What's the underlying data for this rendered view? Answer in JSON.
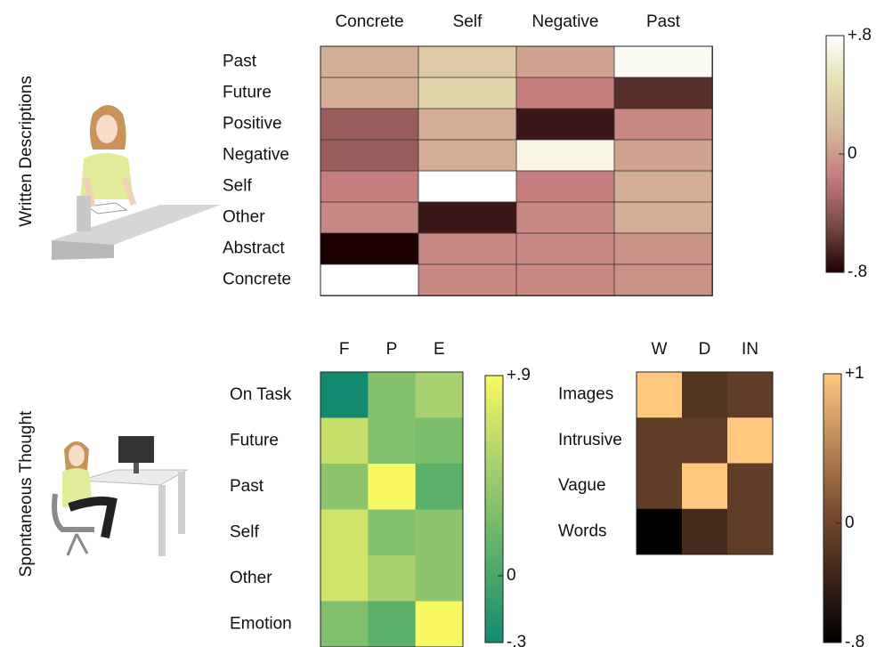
{
  "section_labels": [
    "Written Descriptions",
    "Spontaneous Thought"
  ],
  "chart_data": [
    {
      "type": "heatmap",
      "x_categories": [
        "Concrete",
        "Self",
        "Negative",
        "Past"
      ],
      "y_categories": [
        "Past",
        "Future",
        "Positive",
        "Negative",
        "Self",
        "Other",
        "Abstract",
        "Concrete"
      ],
      "values": [
        [
          0.1,
          0.3,
          0.05,
          0.75
        ],
        [
          0.1,
          0.4,
          -0.15,
          -0.6
        ],
        [
          -0.35,
          0.1,
          -0.7,
          -0.1
        ],
        [
          -0.35,
          0.1,
          0.7,
          0.05
        ],
        [
          -0.15,
          0.8,
          -0.15,
          0.1
        ],
        [
          -0.1,
          -0.7,
          -0.1,
          0.1
        ],
        [
          -0.8,
          -0.1,
          -0.1,
          -0.05
        ],
        [
          0.8,
          -0.1,
          -0.1,
          -0.05
        ]
      ],
      "clim": [
        -0.8,
        0.8
      ],
      "cticks": [
        {
          "value": 0.8,
          "label": "+.8"
        },
        0,
        {
          "value": -0.8,
          "label": "-.8"
        }
      ],
      "colormap": [
        "#1e0000",
        "#7a4a48",
        "#c47c7c",
        "#d6b89c",
        "#e4e0b0",
        "#ffffff"
      ]
    },
    {
      "type": "heatmap",
      "x_categories": [
        "F",
        "P",
        "E"
      ],
      "y_categories": [
        "On Task",
        "Future",
        "Past",
        "Self",
        "Other",
        "Emotion"
      ],
      "values": [
        [
          -0.3,
          0.3,
          0.5
        ],
        [
          0.65,
          0.3,
          0.25
        ],
        [
          0.35,
          0.9,
          0.1
        ],
        [
          0.7,
          0.3,
          0.35
        ],
        [
          0.7,
          0.5,
          0.35
        ],
        [
          0.3,
          0.1,
          0.9
        ]
      ],
      "clim": [
        -0.3,
        0.9
      ],
      "cticks": [
        {
          "value": 0.9,
          "label": "+.9"
        },
        0,
        {
          "value": -0.3,
          "label": "-.3"
        }
      ],
      "colormap": [
        "#128a70",
        "#5cb06a",
        "#a8d070",
        "#f8f862"
      ]
    },
    {
      "type": "heatmap",
      "x_categories": [
        "W",
        "D",
        "IN"
      ],
      "y_categories": [
        "Images",
        "Intrusive",
        "Vague",
        "Words"
      ],
      "values": [
        [
          1,
          -0.2,
          -0.1
        ],
        [
          -0.1,
          -0.1,
          1
        ],
        [
          -0.1,
          1,
          -0.1
        ],
        [
          -0.8,
          -0.3,
          -0.1
        ]
      ],
      "clim": [
        -0.8,
        1
      ],
      "cticks": [
        {
          "value": 1,
          "label": "+1"
        },
        0,
        {
          "value": -0.8,
          "label": "-.8"
        }
      ],
      "colormap": [
        "#000000",
        "#7d4e32",
        "#ffc87f"
      ]
    }
  ]
}
